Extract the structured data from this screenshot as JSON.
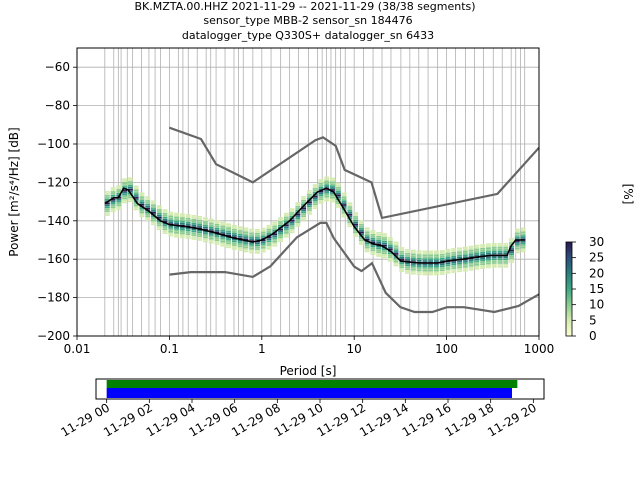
{
  "chart_data": [
    {
      "type": "heatmap",
      "title_lines": [
        "BK.MZTA.00.HHZ   2021-11-29 -- 2021-11-29  (38/38 segments)",
        "sensor_type MBB-2 sensor_sn 184476",
        "datalogger_type Q330S+ datalogger_sn 6433"
      ],
      "xlabel": "Period [s]",
      "ylabel": "Power [m²/s⁴/Hz] [dB]",
      "x_scale": "log",
      "xlim": [
        0.01,
        1000
      ],
      "ylim": [
        -200,
        -50
      ],
      "xticks": [
        {
          "v": 0.01,
          "label": "0.01"
        },
        {
          "v": 0.1,
          "label": "0.1"
        },
        {
          "v": 1,
          "label": "1"
        },
        {
          "v": 10,
          "label": "10"
        },
        {
          "v": 100,
          "label": "100"
        },
        {
          "v": 1000,
          "label": "1000"
        }
      ],
      "yticks": [
        -60,
        -80,
        -100,
        -120,
        -140,
        -160,
        -180,
        -200
      ],
      "grid": true,
      "grid_periods": [
        0.02,
        0.025,
        0.028,
        0.03,
        0.035,
        0.04,
        0.05,
        0.06,
        0.07,
        0.08,
        0.1,
        0.125,
        0.14,
        0.16,
        0.2,
        0.25,
        0.28,
        0.32,
        0.4,
        0.5,
        0.56,
        0.63,
        0.8,
        1.0,
        1.26,
        1.6,
        2.0,
        2.5,
        3.2,
        4.0,
        4.5,
        5.0,
        5.6,
        6.3,
        7.1,
        8.0,
        10,
        12.6,
        16,
        20,
        25,
        32,
        40,
        50,
        63,
        80,
        100,
        125,
        160,
        200,
        250,
        320,
        400,
        500,
        560,
        630,
        700
      ],
      "nhnm": [
        [
          0.1,
          -91.5
        ],
        [
          0.22,
          -97.4
        ],
        [
          0.32,
          -110.5
        ],
        [
          0.8,
          -120.0
        ],
        [
          3.8,
          -98.0
        ],
        [
          4.6,
          -96.5
        ],
        [
          6.3,
          -101.0
        ],
        [
          7.9,
          -113.5
        ],
        [
          15.4,
          -120.0
        ],
        [
          20,
          -138.5
        ],
        [
          354.8,
          -126.0
        ],
        [
          10000,
          -48.5
        ]
      ],
      "nlnm": [
        [
          0.1,
          -168.0
        ],
        [
          0.17,
          -166.7
        ],
        [
          0.4,
          -166.7
        ],
        [
          0.8,
          -169.2
        ],
        [
          1.24,
          -163.7
        ],
        [
          2.4,
          -148.6
        ],
        [
          4.3,
          -141.1
        ],
        [
          5.0,
          -141.1
        ],
        [
          6.0,
          -149.0
        ],
        [
          10.0,
          -163.8
        ],
        [
          12.0,
          -166.2
        ],
        [
          15.6,
          -162.1
        ],
        [
          21.9,
          -177.5
        ],
        [
          31.6,
          -185.0
        ],
        [
          45,
          -187.5
        ],
        [
          70,
          -187.5
        ],
        [
          101,
          -185.0
        ],
        [
          154,
          -185.0
        ],
        [
          328,
          -187.5
        ],
        [
          600,
          -184.4
        ],
        [
          1000,
          -178.3
        ]
      ],
      "mode_curve": [
        [
          0.02,
          -131
        ],
        [
          0.025,
          -128
        ],
        [
          0.028,
          -128
        ],
        [
          0.032,
          -123
        ],
        [
          0.036,
          -124
        ],
        [
          0.045,
          -131
        ],
        [
          0.06,
          -135
        ],
        [
          0.08,
          -140
        ],
        [
          0.1,
          -142
        ],
        [
          0.15,
          -143
        ],
        [
          0.2,
          -144
        ],
        [
          0.3,
          -146
        ],
        [
          0.5,
          -149
        ],
        [
          0.8,
          -151
        ],
        [
          1.0,
          -150
        ],
        [
          1.3,
          -147
        ],
        [
          2.0,
          -140
        ],
        [
          3.0,
          -131
        ],
        [
          4.0,
          -125
        ],
        [
          5.0,
          -123
        ],
        [
          6.0,
          -125
        ],
        [
          8.0,
          -135
        ],
        [
          10,
          -143
        ],
        [
          13,
          -150
        ],
        [
          16,
          -152
        ],
        [
          20,
          -153
        ],
        [
          25,
          -156
        ],
        [
          32,
          -161
        ],
        [
          50,
          -162
        ],
        [
          80,
          -162
        ],
        [
          100,
          -161
        ],
        [
          150,
          -160
        ],
        [
          200,
          -159
        ],
        [
          300,
          -158
        ],
        [
          450,
          -158
        ],
        [
          500,
          -153
        ],
        [
          560,
          -150
        ],
        [
          700,
          -150
        ]
      ],
      "colorbar": {
        "label": "[%]",
        "ticks": [
          0,
          5,
          10,
          15,
          20,
          25,
          30
        ],
        "range": [
          0,
          30
        ],
        "colors": [
          "#fefed1",
          "#d4ebb0",
          "#8ccc91",
          "#3fa885",
          "#2b7d7d",
          "#2c4f7a",
          "#2a1a50"
        ]
      },
      "coverage": {
        "tick_labels": [
          "11-29 00",
          "11-29 02",
          "11-29 04",
          "11-29 06",
          "11-29 08",
          "11-29 10",
          "11-29 12",
          "11-29 14",
          "11-29 16",
          "11-29 18",
          "11-29 20"
        ],
        "tick_hours": [
          0,
          2,
          4,
          6,
          8,
          10,
          12,
          14,
          16,
          18,
          20
        ],
        "xlim_hours": [
          -0.5,
          20.5
        ],
        "data_span_hours": [
          0,
          19.25
        ],
        "processed_span_hours": [
          0,
          19.0
        ],
        "data_color": "#008000",
        "processed_color": "#0000ff"
      }
    }
  ]
}
